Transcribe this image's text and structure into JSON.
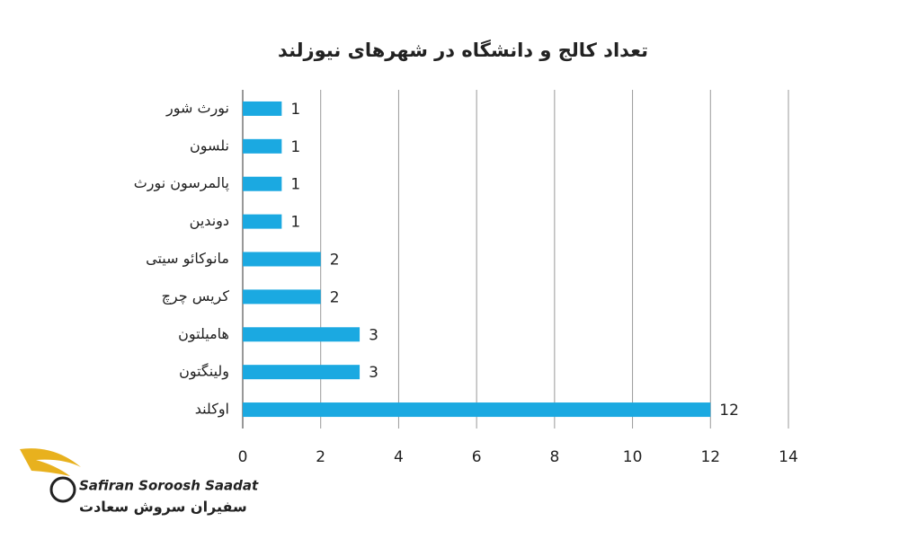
{
  "chart_data": {
    "type": "bar",
    "orientation": "horizontal",
    "title": "تعداد کالج و دانشگاه در شهرهای نیوزلند",
    "categories": [
      "نورث شور",
      "نلسون",
      "پالمرسون نورث",
      "دوندین",
      "مانوکائو سیتی",
      "کریس چرچ",
      "هامیلتون",
      "ولینگتون",
      "اوکلند"
    ],
    "values": [
      1,
      1,
      1,
      1,
      2,
      2,
      3,
      3,
      12
    ],
    "color": "#1ba9e1",
    "xlim": [
      0,
      14
    ],
    "xticks": [
      0,
      2,
      4,
      6,
      8,
      10,
      12,
      14
    ],
    "grid": true
  },
  "logo": {
    "name_en": "Safiran Soroosh Saadat",
    "name_fa": "سفیران سروش سعادت"
  }
}
